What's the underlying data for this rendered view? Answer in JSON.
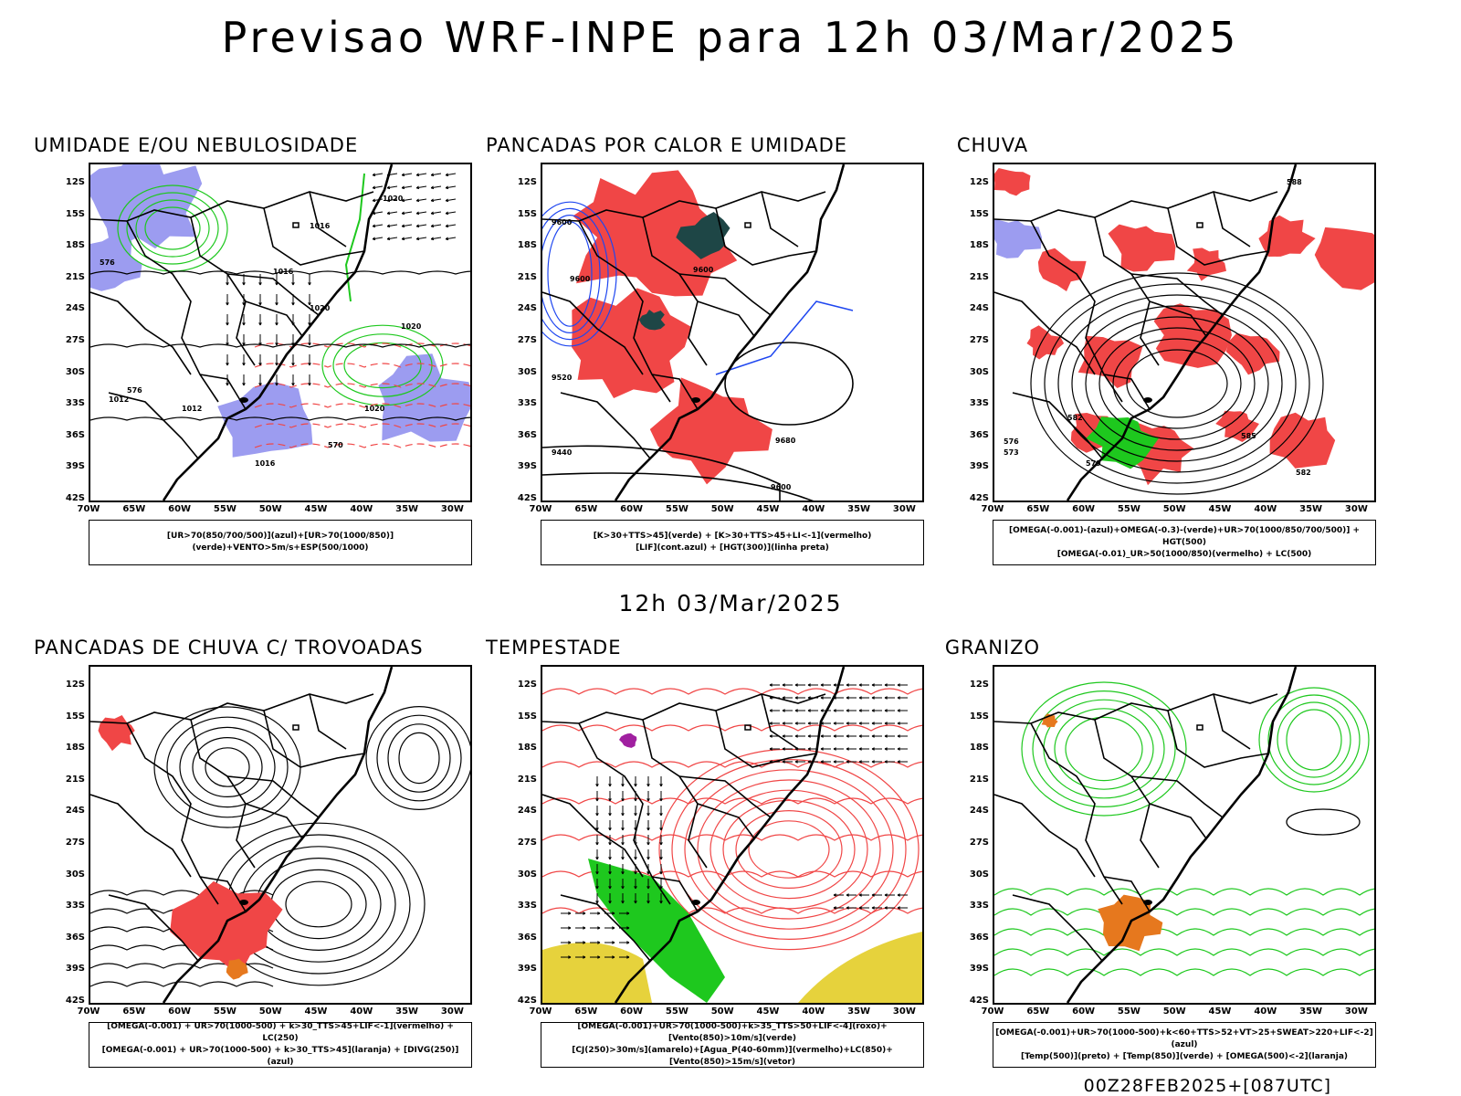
{
  "title": "Previsao WRF-INPE  para 12h 03/Mar/2025",
  "subtitle": "12h 03/Mar/2025",
  "run_stamp": "00Z28FEB2025+[087UTC]",
  "lat_labels": [
    "12S",
    "15S",
    "18S",
    "21S",
    "24S",
    "27S",
    "30S",
    "33S",
    "36S",
    "39S",
    "42S"
  ],
  "lon_labels": [
    "70W",
    "65W",
    "60W",
    "55W",
    "50W",
    "45W",
    "40W",
    "35W",
    "30W"
  ],
  "colors": {
    "blue_shade": "#9c9cf0",
    "green_contour": "#1ec81e",
    "red_shade": "#f04646",
    "dark_green": "#1e4646",
    "yellow": "#e6d23c",
    "orange": "#e6781e",
    "blue_contour": "#1e46f0",
    "black": "#000000"
  },
  "panels": [
    {
      "title": "UMIDADE E/OU NEBULOSIDADE",
      "legend": [
        "[UR>70(850/700/500)](azul)+[UR>70(1000/850)](verde)+VENTO>5m/s+ESP(500/1000)"
      ],
      "contour_labels": [
        "1016",
        "1016",
        "1020",
        "1020",
        "1020",
        "1012",
        "1012",
        "1016",
        "1020",
        "576",
        "576",
        "570"
      ]
    },
    {
      "title": "PANCADAS POR CALOR E UMIDADE",
      "legend": [
        "[K>30+TTS>45](verde) + [K>30+TTS>45+LI<-1](vermelho)",
        "[LIF](cont.azul) + [HGT(300)](linha preta)"
      ],
      "contour_labels": [
        "9600",
        "9600",
        "9600",
        "9520",
        "9680",
        "9600",
        "9440"
      ]
    },
    {
      "title": "CHUVA",
      "legend": [
        "[OMEGA(-0.001)-(azul)+OMEGA(-0.3)-(verde)+UR>70(1000/850/700/500)] + HGT(500)",
        "[OMEGA(-0.01)_UR>50(1000/850)(vermelho) + LC(500)"
      ],
      "contour_labels": [
        "582",
        "585",
        "588",
        "576",
        "573",
        "579",
        "582"
      ]
    },
    {
      "title": "PANCADAS DE CHUVA C/ TROVOADAS",
      "legend": [
        "[OMEGA(-0.001) + UR>70(1000-500) + k>30_TTS>45+LIF<-1](vermelho) + LC(250)",
        "[OMEGA(-0.001) + UR>70(1000-500) + k>30_TTS>45](laranja) + [DIVG(250)](azul)"
      ],
      "contour_labels": []
    },
    {
      "title": "TEMPESTADE",
      "legend": [
        "[OMEGA(-0.001)+UR>70(1000-500)+k>35_TTS>50+LIF<-4](roxo)+[Vento(850)>10m/s](verde)",
        "[CJ(250)>30m/s](amarelo)+[Agua_P(40-60mm)](vermelho)+LC(850)+[Vento(850)>15m/s](vetor)"
      ],
      "contour_labels": []
    },
    {
      "title": "GRANIZO",
      "legend": [
        "[OMEGA(-0.001)+UR>70(1000-500)+k<60+TTS>52+VT>25+SWEAT>220+LIF<-2](azul)",
        "[Temp(500)](preto) + [Temp(850)](verde) + [OMEGA(500)<-2](laranja)"
      ],
      "contour_labels": []
    }
  ]
}
